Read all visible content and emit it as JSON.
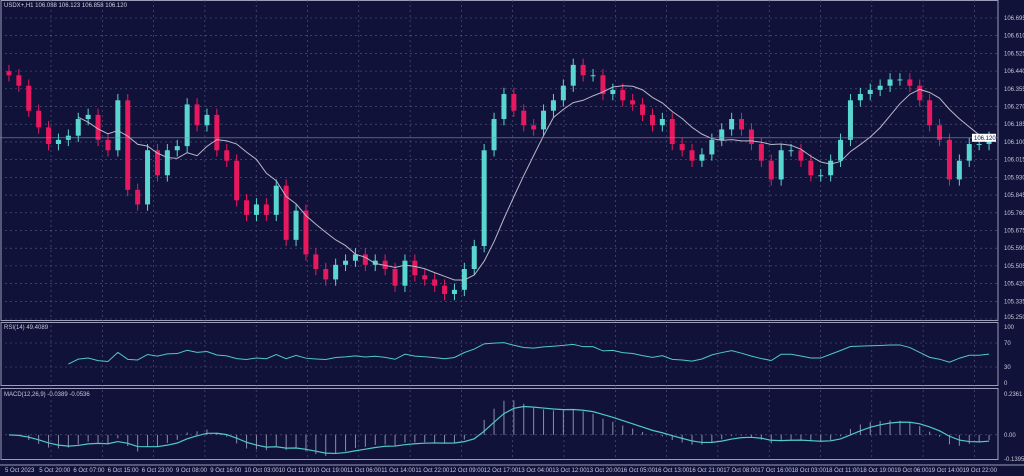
{
  "header": {
    "symbol_line": "USDX+,H1  106.088 106.123 106.858 106.120"
  },
  "price_axis": [
    "106.695",
    "106.610",
    "106.525",
    "106.440",
    "106.355",
    "106.270",
    "106.185",
    "106.100",
    "106.015",
    "105.930",
    "105.845",
    "105.760",
    "105.675",
    "105.590",
    "105.505",
    "105.420",
    "105.335",
    "105.250"
  ],
  "current_price": "106.120",
  "rsi": {
    "label": "RSI(14) 49.4089",
    "axis": [
      "100",
      "70",
      "30",
      "0"
    ]
  },
  "macd": {
    "label": "MACD(12,26,9) -0.0389 -0.0536",
    "axis": [
      "0.2361",
      "0.00",
      "-0.1395"
    ]
  },
  "time_axis": [
    "5 Oct 2023",
    "5 Oct 20:00",
    "6 Oct 07:00",
    "6 Oct 15:00",
    "6 Oct 23:00",
    "9 Oct 08:00",
    "9 Oct 16:00",
    "10 Oct 03:00",
    "10 Oct 11:00",
    "10 Oct 19:00",
    "11 Oct 06:00",
    "11 Oct 14:00",
    "11 Oct 22:00",
    "12 Oct 09:00",
    "12 Oct 17:00",
    "13 Oct 04:00",
    "13 Oct 12:00",
    "13 Oct 20:00",
    "16 Oct 05:00",
    "16 Oct 13:00",
    "16 Oct 21:00",
    "17 Oct 08:00",
    "17 Oct 16:00",
    "18 Oct 03:00",
    "18 Oct 11:00",
    "18 Oct 19:00",
    "19 Oct 06:00",
    "19 Oct 14:00",
    "19 Oct 22:00"
  ],
  "colors": {
    "background": "#10123a",
    "bull": "#5ad6d0",
    "bear": "#e8185e",
    "ma": "#b8b8c8",
    "indicator": "#4fc9c9",
    "grid": "#5a5c80"
  },
  "chart_data": {
    "type": "candlestick",
    "ylim": [
      105.25,
      106.695
    ],
    "rsi_ylim": [
      0,
      100
    ],
    "macd_ylim": [
      -0.1395,
      0.2361
    ],
    "grid": true,
    "closes": [
      106.42,
      106.37,
      106.25,
      106.17,
      106.09,
      106.11,
      106.13,
      106.21,
      106.23,
      106.11,
      106.06,
      106.3,
      105.87,
      105.8,
      106.06,
      105.94,
      106.06,
      106.08,
      106.28,
      106.18,
      106.23,
      106.06,
      106.01,
      105.82,
      105.75,
      105.8,
      105.75,
      105.89,
      105.63,
      105.77,
      105.56,
      105.49,
      105.44,
      105.51,
      105.53,
      105.56,
      105.51,
      105.53,
      105.49,
      105.41,
      105.53,
      105.46,
      105.44,
      105.41,
      105.37,
      105.39,
      105.49,
      105.6,
      106.06,
      106.21,
      106.33,
      106.25,
      106.18,
      106.16,
      106.25,
      106.3,
      106.37,
      106.47,
      106.42,
      106.42,
      106.33,
      106.35,
      106.3,
      106.28,
      106.23,
      106.18,
      106.21,
      106.09,
      106.06,
      106.01,
      106.04,
      106.11,
      106.16,
      106.21,
      106.16,
      106.09,
      106.01,
      105.92,
      106.06,
      106.06,
      106.01,
      105.94,
      105.94,
      106.01,
      106.11,
      106.3,
      106.33,
      106.35,
      106.37,
      106.4,
      106.4,
      106.37,
      106.3,
      106.18,
      106.11,
      105.92,
      106.01,
      106.09,
      106.09,
      106.12
    ]
  }
}
